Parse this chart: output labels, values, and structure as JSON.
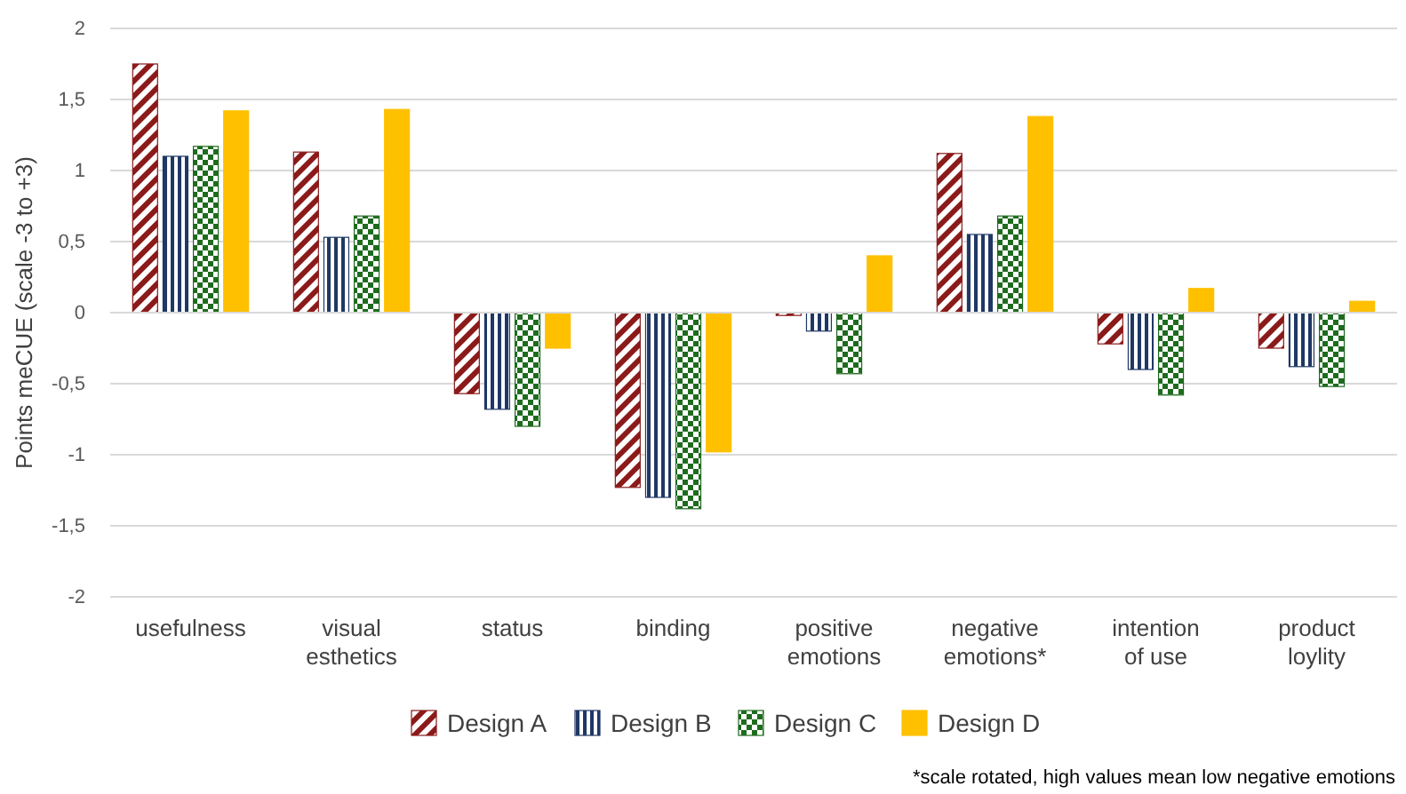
{
  "chart_data": {
    "type": "bar",
    "ylabel": "Points meCUE (scale -3 to +3)",
    "categories": [
      "usefulness",
      "visual esthetics",
      "status",
      "binding",
      "positive emotions",
      "negative emotions*",
      "intention of use",
      "product loylity"
    ],
    "series": [
      {
        "name": "Design A",
        "color": "#8b1a1a",
        "values": [
          1.75,
          1.13,
          -0.57,
          -1.23,
          -0.02,
          1.12,
          -0.22,
          -0.25
        ]
      },
      {
        "name": "Design B",
        "color": "#1f3864",
        "values": [
          1.1,
          0.53,
          -0.68,
          -1.3,
          -0.13,
          0.55,
          -0.4,
          -0.38
        ]
      },
      {
        "name": "Design C",
        "color": "#1e6b1e",
        "values": [
          1.17,
          0.68,
          -0.8,
          -1.38,
          -0.43,
          0.68,
          -0.58,
          -0.52
        ]
      },
      {
        "name": "Design D",
        "color": "#ffc000",
        "values": [
          1.42,
          1.43,
          -0.25,
          -0.98,
          0.4,
          1.38,
          0.17,
          0.08
        ]
      }
    ],
    "ylim": [
      -2,
      2
    ],
    "yticks": [
      {
        "value": -2,
        "label": "-2"
      },
      {
        "value": -1.5,
        "label": "-1,5"
      },
      {
        "value": -1,
        "label": "-1"
      },
      {
        "value": -0.5,
        "label": "-0,5"
      },
      {
        "value": 0,
        "label": "0"
      },
      {
        "value": 0.5,
        "label": "0,5"
      },
      {
        "value": 1,
        "label": "1"
      },
      {
        "value": 1.5,
        "label": "1,5"
      },
      {
        "value": 2,
        "label": "2"
      }
    ],
    "grid": "y",
    "legend": "bottom",
    "annotations": [
      "*scale rotated, high values mean low negative emotions"
    ]
  }
}
